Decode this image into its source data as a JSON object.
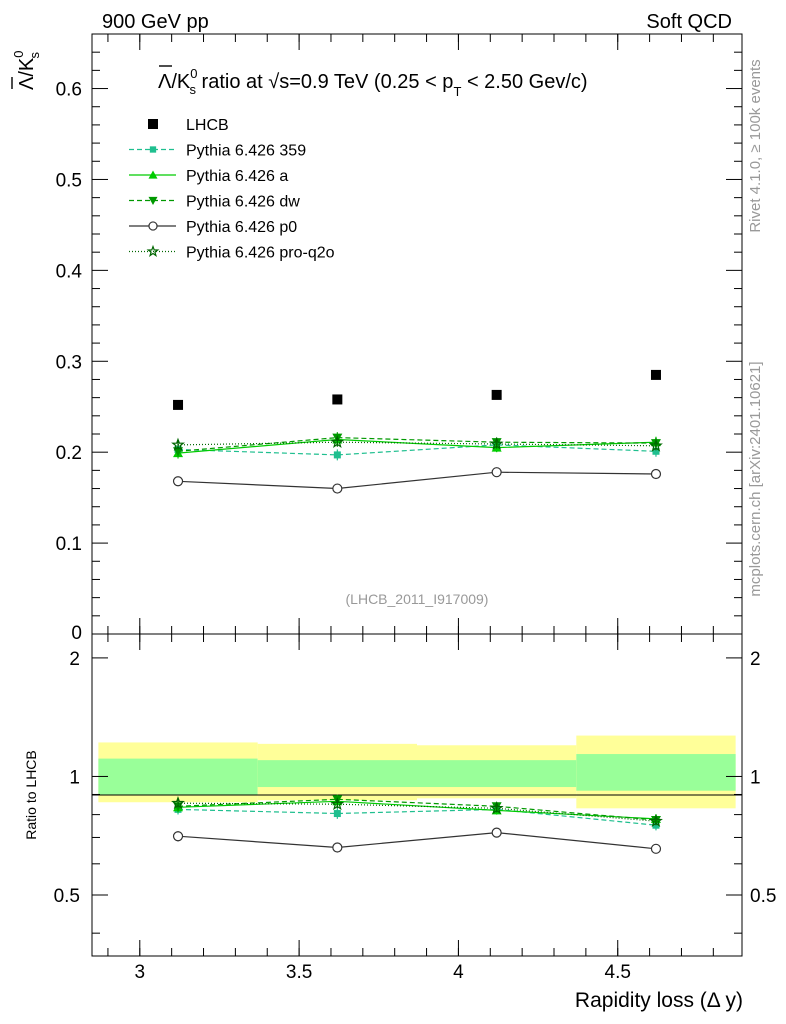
{
  "header": {
    "left": "900 GeV pp",
    "right": "Soft QCD"
  },
  "side_labels": {
    "rivet": "Rivet 4.1.0, ≥ 100k events",
    "mcplots": "mcplots.cern.ch [arXiv:2401.10621]"
  },
  "chart_data": {
    "type": "scatter",
    "title": "Λ/K⁰s ratio at √s=0.9 TeV (0.25 < pT < 2.50 Gev/c)",
    "title_parts": {
      "prefix": "Λ/K",
      "sup": "0",
      "sub": "s",
      "mid": " ratio at √s=0.9 TeV (0.25 < p",
      "pt_sub": "T",
      "suffix": " < 2.50 Gev/c)"
    },
    "ylabel": "Λ/K⁰s",
    "ylabel_parts": {
      "main": "Λ/K",
      "sup": "0",
      "sub": "s"
    },
    "xlabel": "Rapidity loss (Δ y)",
    "ratio_ylabel": "Ratio to LHCB",
    "watermark": "(LHCB_2011_I917009)",
    "xlim": [
      2.85,
      4.89
    ],
    "ylim": [
      0,
      0.66
    ],
    "ratio_ylim": [
      0.35,
      2.3
    ],
    "x_ticks": [
      3,
      3.5,
      4,
      4.5
    ],
    "x_tick_labels": [
      "3",
      "3.5",
      "4",
      "4.5"
    ],
    "y_ticks": [
      0,
      0.1,
      0.2,
      0.3,
      0.4,
      0.5,
      0.6
    ],
    "y_tick_labels": [
      "0",
      "0.1",
      "0.2",
      "0.3",
      "0.4",
      "0.5",
      "0.6"
    ],
    "ratio_y_ticks": [
      0.5,
      1,
      2
    ],
    "ratio_y_tick_labels": [
      "0.5",
      "1",
      "2"
    ],
    "x": [
      3.12,
      3.62,
      4.12,
      4.62
    ],
    "bin_edges": [
      2.87,
      3.37,
      3.87,
      4.37,
      4.87
    ],
    "data": {
      "name": "LHCB",
      "values": [
        0.252,
        0.258,
        0.263,
        0.285
      ],
      "band_inner": [
        [
          0.9,
          1.11
        ],
        [
          0.94,
          1.1
        ],
        [
          0.94,
          1.1
        ],
        [
          0.92,
          1.14
        ]
      ],
      "band_outer": [
        [
          0.86,
          1.22
        ],
        [
          0.87,
          1.21
        ],
        [
          0.88,
          1.2
        ],
        [
          0.83,
          1.27
        ]
      ]
    },
    "series": [
      {
        "name": "Pythia 6.426 359",
        "color": "#1fbf8f",
        "dash": "5,3",
        "marker": "square",
        "values": [
          0.203,
          0.197,
          0.208,
          0.201
        ],
        "err": [
          0.006,
          0.006,
          0.005,
          0.006
        ],
        "ratio": [
          0.825,
          0.805,
          0.825,
          0.752
        ]
      },
      {
        "name": "Pythia 6.426 a",
        "color": "#00cc00",
        "dash": "",
        "marker": "triangle-up",
        "values": [
          0.199,
          0.214,
          0.205,
          0.211
        ],
        "err": [
          0.006,
          0.006,
          0.005,
          0.006
        ],
        "ratio": [
          0.835,
          0.865,
          0.82,
          0.78
        ]
      },
      {
        "name": "Pythia 6.426 dw",
        "color": "#009900",
        "dash": "5,3",
        "marker": "triangle-down",
        "values": [
          0.201,
          0.216,
          0.211,
          0.21
        ],
        "err": [
          0.006,
          0.006,
          0.005,
          0.006
        ],
        "ratio": [
          0.84,
          0.875,
          0.84,
          0.775
        ]
      },
      {
        "name": "Pythia 6.426 p0",
        "color": "#333333",
        "dash": "",
        "marker": "circle-open",
        "values": [
          0.168,
          0.16,
          0.178,
          0.176
        ],
        "err": [
          0.005,
          0.004,
          0.004,
          0.004
        ],
        "ratio": [
          0.705,
          0.66,
          0.72,
          0.655
        ]
      },
      {
        "name": "Pythia 6.426 pro-q2o",
        "color": "#006600",
        "dash": "1,2",
        "marker": "star-open",
        "values": [
          0.208,
          0.211,
          0.209,
          0.207
        ],
        "err": [
          0.005,
          0.005,
          0.005,
          0.005
        ],
        "ratio": [
          0.855,
          0.85,
          0.83,
          0.77
        ]
      }
    ],
    "legend_position": "top-left"
  }
}
